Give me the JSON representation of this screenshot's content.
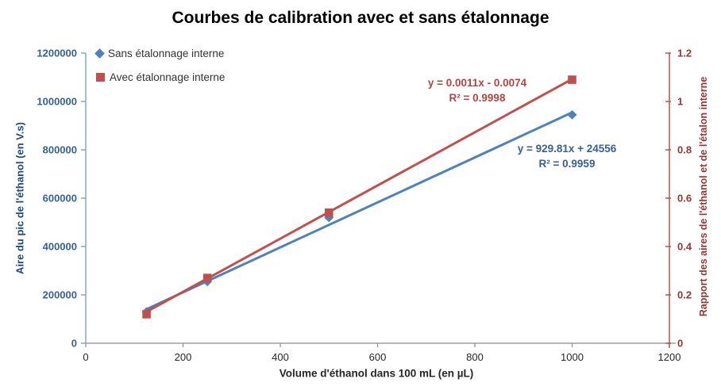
{
  "chart_data": {
    "type": "scatter",
    "title": "Courbes de calibration avec et sans étalonnage",
    "x": [
      125,
      250,
      500,
      1000
    ],
    "series": [
      {
        "name": "Sans étalonnage interne",
        "axis": "left",
        "marker": "diamond",
        "color": "#4F81BD",
        "values": [
          130000,
          255000,
          520000,
          945000
        ],
        "trendline": {
          "slope": 929.81,
          "intercept": 24556,
          "x_start": 125,
          "x_end": 1000
        },
        "equation": "y = 929.81x  + 24556",
        "r2": "R² = 0.9959",
        "equation_color": "#376092"
      },
      {
        "name": "Avec étalonnage interne",
        "axis": "right",
        "marker": "square",
        "color": "#C0504D",
        "values": [
          0.12,
          0.27,
          0.54,
          1.09
        ],
        "trendline": {
          "slope": 0.0011,
          "intercept": -0.0074,
          "x_start": 125,
          "x_end": 1000
        },
        "equation": "y = 0.0011x  - 0.0074",
        "r2": "R² = 0.9998",
        "equation_color": "#B04542"
      }
    ],
    "x_axis": {
      "label": "Volume d'éthanol dans 100 mL (en µL)",
      "min": 0,
      "max": 1200,
      "tick_values": [
        0,
        200,
        400,
        600,
        800,
        1000,
        1200
      ],
      "tick_labels": [
        "0",
        "200",
        "400",
        "600",
        "800",
        "1000",
        "1200"
      ],
      "text_color": "#262626",
      "title_color": "#262626",
      "line_color": "#8C8C8C"
    },
    "y_left": {
      "label": "Aire du pic de l'éthanol (en V.s)",
      "min": 0,
      "max": 1200000,
      "tick_values": [
        0,
        200000,
        400000,
        600000,
        800000,
        1000000,
        1200000
      ],
      "tick_labels": [
        "0",
        "200000",
        "400000",
        "600000",
        "800000",
        "1000000",
        "1200000"
      ],
      "text_color": "#376092",
      "title_color": "#1F497D",
      "line_color": "#7BA0CD"
    },
    "y_right": {
      "label": "Rapport des aires de l'éthanol et de l'étalon interne",
      "min": 0,
      "max": 1.2,
      "tick_values": [
        0,
        0.2,
        0.4,
        0.6,
        0.8,
        1,
        1.2
      ],
      "tick_labels": [
        "0",
        "0.2",
        "0.4",
        "0.6",
        "0.8",
        "1",
        "1.2"
      ],
      "text_color": "#963634",
      "title_color": "#963634",
      "line_color": "#B04A47"
    },
    "legend": {
      "position": "top-left"
    },
    "grid": false
  }
}
